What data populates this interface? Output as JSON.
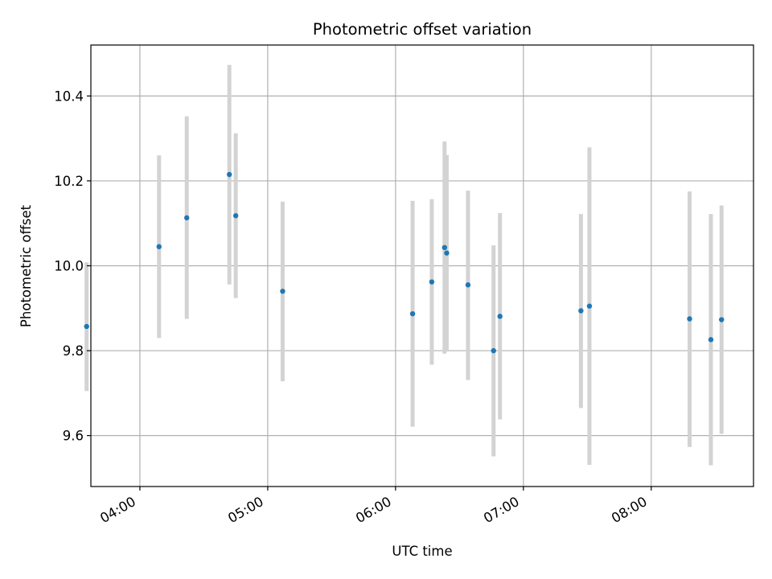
{
  "chart_data": {
    "type": "scatter",
    "title": "Photometric offset variation",
    "xlabel": "UTC time",
    "ylabel": "Photometric offset",
    "x_ticks": [
      "04:00",
      "05:00",
      "06:00",
      "07:00",
      "08:00"
    ],
    "y_ticks": [
      "9.6",
      "9.8",
      "10.0",
      "10.2",
      "10.4"
    ],
    "xlim": [
      "03:37",
      "08:48"
    ],
    "ylim": [
      9.48,
      10.52
    ],
    "grid": true,
    "colors": {
      "point": "#1f77b4",
      "errorbar": "#d3d3d3",
      "grid": "#b0b0b0"
    },
    "points": [
      {
        "x": "03:35",
        "y": 9.857,
        "lo": 9.705,
        "hi": 10.008
      },
      {
        "x": "04:09",
        "y": 10.045,
        "lo": 9.83,
        "hi": 10.26
      },
      {
        "x": "04:22",
        "y": 10.113,
        "lo": 9.875,
        "hi": 10.352
      },
      {
        "x": "04:42",
        "y": 10.215,
        "lo": 9.956,
        "hi": 10.473
      },
      {
        "x": "04:45",
        "y": 10.118,
        "lo": 9.924,
        "hi": 10.312
      },
      {
        "x": "05:07",
        "y": 9.94,
        "lo": 9.728,
        "hi": 10.151
      },
      {
        "x": "06:08",
        "y": 9.887,
        "lo": 9.621,
        "hi": 10.153
      },
      {
        "x": "06:17",
        "y": 9.962,
        "lo": 9.767,
        "hi": 10.157
      },
      {
        "x": "06:23",
        "y": 10.043,
        "lo": 9.793,
        "hi": 10.293
      },
      {
        "x": "06:24",
        "y": 10.03,
        "lo": 9.798,
        "hi": 10.261
      },
      {
        "x": "06:34",
        "y": 9.955,
        "lo": 9.731,
        "hi": 10.177
      },
      {
        "x": "06:46",
        "y": 9.8,
        "lo": 9.551,
        "hi": 10.048
      },
      {
        "x": "06:49",
        "y": 9.881,
        "lo": 9.638,
        "hi": 10.124
      },
      {
        "x": "07:27",
        "y": 9.894,
        "lo": 9.665,
        "hi": 10.122
      },
      {
        "x": "07:31",
        "y": 9.905,
        "lo": 9.531,
        "hi": 10.279
      },
      {
        "x": "08:18",
        "y": 9.875,
        "lo": 9.573,
        "hi": 10.175
      },
      {
        "x": "08:28",
        "y": 9.826,
        "lo": 9.53,
        "hi": 10.122
      },
      {
        "x": "08:33",
        "y": 9.873,
        "lo": 9.604,
        "hi": 10.142
      }
    ]
  }
}
